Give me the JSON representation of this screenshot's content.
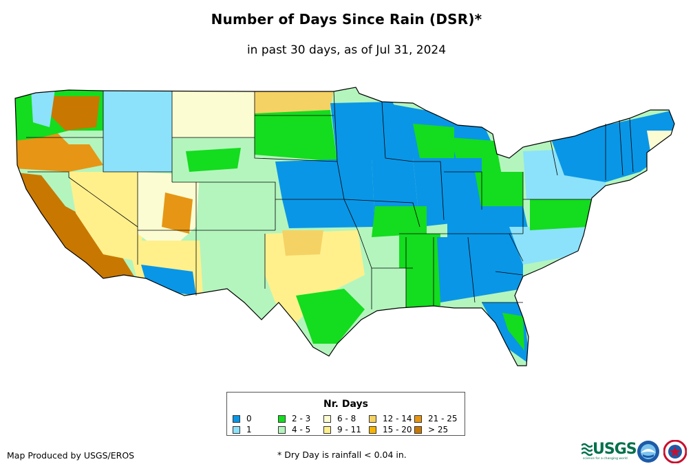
{
  "header": {
    "title": "Number of Days Since Rain (DSR)*",
    "subtitle": "in past 30 days, as of Jul 31, 2024"
  },
  "legend": {
    "title": "Nr. Days",
    "items": [
      {
        "label": "0",
        "color": "#0a96e6"
      },
      {
        "label": "1",
        "color": "#8ce2fa"
      },
      {
        "label": "2 - 3",
        "color": "#14dc1e"
      },
      {
        "label": "4 - 5",
        "color": "#b4f5be"
      },
      {
        "label": "6 - 8",
        "color": "#fcfcd2"
      },
      {
        "label": "9 - 11",
        "color": "#fff08c"
      },
      {
        "label": "12 - 14",
        "color": "#f5d264"
      },
      {
        "label": "15 - 20",
        "color": "#f5b400"
      },
      {
        "label": "21 - 25",
        "color": "#e69614"
      },
      {
        "label": "> 25",
        "color": "#c87800"
      }
    ]
  },
  "footer": {
    "credit": "Map Produced by USGS/EROS",
    "footnote": "* Dry Day is rainfall < 0.04 in.",
    "logos": {
      "usgs": "USGS",
      "usgs_tagline": "science for a changing world"
    }
  }
}
